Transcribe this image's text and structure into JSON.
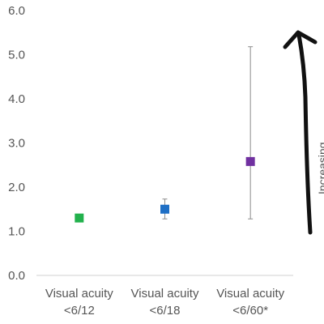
{
  "chart_data": {
    "type": "scatter",
    "categories": [
      [
        "Visual acuity",
        "<6/12"
      ],
      [
        "Visual acuity",
        "<6/18"
      ],
      [
        "Visual acuity",
        "<6/60*"
      ]
    ],
    "values": [
      1.3,
      1.5,
      2.58
    ],
    "error_low": [
      null,
      1.28,
      1.28
    ],
    "error_high": [
      null,
      1.73,
      5.18
    ],
    "point_colors": [
      "#22b14c",
      "#1f6fc5",
      "#7030a0"
    ],
    "ylim": [
      0,
      6
    ],
    "yticks": [
      "0.0",
      "1.0",
      "2.0",
      "3.0",
      "4.0",
      "5.0",
      "6.0"
    ],
    "grid": false,
    "title": "",
    "xlabel": "",
    "ylabel": "",
    "annotation": {
      "type": "hand-drawn upward arrow",
      "color": "#111111",
      "cut_off_text": "Increasing ..."
    }
  }
}
